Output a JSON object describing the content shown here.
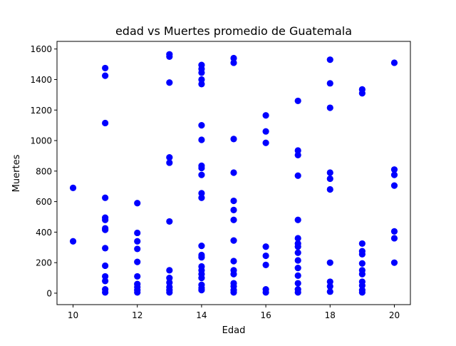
{
  "chart_data": {
    "type": "scatter",
    "title": "edad vs Muertes promedio de Guatemala",
    "xlabel": "Edad",
    "ylabel": "Muertes",
    "xlim": [
      9.5,
      20.5
    ],
    "ylim": [
      -75,
      1650
    ],
    "xticks": [
      10,
      12,
      14,
      16,
      18,
      20
    ],
    "yticks": [
      0,
      200,
      400,
      600,
      800,
      1000,
      1200,
      1400,
      1600
    ],
    "grid": false,
    "marker_color": "#0000ff",
    "series": [
      {
        "points": [
          [
            10,
            690
          ],
          [
            10,
            340
          ],
          [
            11,
            1475
          ],
          [
            11,
            1425
          ],
          [
            11,
            1115
          ],
          [
            11,
            625
          ],
          [
            11,
            495
          ],
          [
            11,
            480
          ],
          [
            11,
            425
          ],
          [
            11,
            415
          ],
          [
            11,
            295
          ],
          [
            11,
            180
          ],
          [
            11,
            110
          ],
          [
            11,
            80
          ],
          [
            11,
            25
          ],
          [
            11,
            5
          ],
          [
            12,
            590
          ],
          [
            12,
            395
          ],
          [
            12,
            340
          ],
          [
            12,
            290
          ],
          [
            12,
            205
          ],
          [
            12,
            110
          ],
          [
            12,
            60
          ],
          [
            12,
            40
          ],
          [
            12,
            20
          ],
          [
            12,
            5
          ],
          [
            13,
            1565
          ],
          [
            13,
            1550
          ],
          [
            13,
            1380
          ],
          [
            13,
            890
          ],
          [
            13,
            855
          ],
          [
            13,
            470
          ],
          [
            13,
            150
          ],
          [
            13,
            100
          ],
          [
            13,
            70
          ],
          [
            13,
            40
          ],
          [
            13,
            20
          ],
          [
            13,
            5
          ],
          [
            14,
            1495
          ],
          [
            14,
            1470
          ],
          [
            14,
            1445
          ],
          [
            14,
            1400
          ],
          [
            14,
            1370
          ],
          [
            14,
            1100
          ],
          [
            14,
            1005
          ],
          [
            14,
            835
          ],
          [
            14,
            820
          ],
          [
            14,
            775
          ],
          [
            14,
            655
          ],
          [
            14,
            625
          ],
          [
            14,
            310
          ],
          [
            14,
            250
          ],
          [
            14,
            235
          ],
          [
            14,
            175
          ],
          [
            14,
            150
          ],
          [
            14,
            125
          ],
          [
            14,
            100
          ],
          [
            14,
            55
          ],
          [
            14,
            35
          ],
          [
            14,
            20
          ],
          [
            15,
            1540
          ],
          [
            15,
            1510
          ],
          [
            15,
            1010
          ],
          [
            15,
            790
          ],
          [
            15,
            605
          ],
          [
            15,
            545
          ],
          [
            15,
            480
          ],
          [
            15,
            345
          ],
          [
            15,
            210
          ],
          [
            15,
            150
          ],
          [
            15,
            125
          ],
          [
            15,
            65
          ],
          [
            15,
            45
          ],
          [
            15,
            20
          ],
          [
            15,
            5
          ],
          [
            16,
            1165
          ],
          [
            16,
            1060
          ],
          [
            16,
            985
          ],
          [
            16,
            305
          ],
          [
            16,
            245
          ],
          [
            16,
            185
          ],
          [
            16,
            25
          ],
          [
            16,
            5
          ],
          [
            17,
            1260
          ],
          [
            17,
            935
          ],
          [
            17,
            905
          ],
          [
            17,
            770
          ],
          [
            17,
            480
          ],
          [
            17,
            360
          ],
          [
            17,
            325
          ],
          [
            17,
            305
          ],
          [
            17,
            265
          ],
          [
            17,
            215
          ],
          [
            17,
            165
          ],
          [
            17,
            115
          ],
          [
            17,
            65
          ],
          [
            17,
            25
          ],
          [
            17,
            5
          ],
          [
            18,
            1530
          ],
          [
            18,
            1375
          ],
          [
            18,
            1215
          ],
          [
            18,
            790
          ],
          [
            18,
            750
          ],
          [
            18,
            680
          ],
          [
            18,
            200
          ],
          [
            18,
            75
          ],
          [
            18,
            45
          ],
          [
            18,
            10
          ],
          [
            19,
            1335
          ],
          [
            19,
            1310
          ],
          [
            19,
            325
          ],
          [
            19,
            275
          ],
          [
            19,
            255
          ],
          [
            19,
            195
          ],
          [
            19,
            150
          ],
          [
            19,
            125
          ],
          [
            19,
            75
          ],
          [
            19,
            50
          ],
          [
            19,
            20
          ],
          [
            19,
            5
          ],
          [
            20,
            1510
          ],
          [
            20,
            810
          ],
          [
            20,
            775
          ],
          [
            20,
            705
          ],
          [
            20,
            405
          ],
          [
            20,
            360
          ],
          [
            20,
            200
          ]
        ]
      }
    ]
  }
}
